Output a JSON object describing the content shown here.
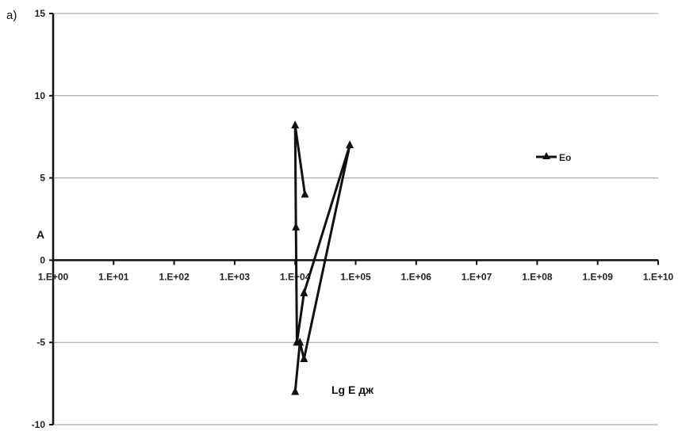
{
  "panel_label": "а)",
  "chart_data": {
    "type": "line",
    "xlabel": "Lg E дж",
    "ylabel": "A",
    "x_scale": "log",
    "xlim": [
      1,
      10000000000
    ],
    "ylim": [
      -10,
      15
    ],
    "grid": true,
    "legend_position": "right",
    "x_tick_labels": [
      "1.E+00",
      "1.E+01",
      "1.E+02",
      "1.E+03",
      "1.E+04",
      "1.E+05",
      "1.E+06",
      "1.E+07",
      "1.E+08",
      "1.E+09",
      "1.E+10"
    ],
    "y_ticks": [
      15,
      10,
      5,
      0,
      -5,
      -10
    ],
    "series": [
      {
        "name": "Eo",
        "color": "#111111",
        "marker": "triangle",
        "x": [
          14500,
          10000,
          10300,
          10700,
          14000,
          80000,
          14000,
          12000,
          10000
        ],
        "y": [
          4,
          8.2,
          2,
          -5,
          -2,
          7,
          -6,
          -5,
          -8
        ]
      }
    ]
  }
}
